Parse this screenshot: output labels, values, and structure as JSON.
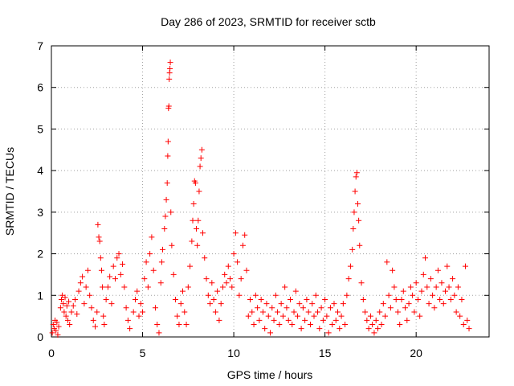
{
  "chart_data": {
    "type": "scatter",
    "title": "Day 286 of 2023, SRMTID for receiver sctb",
    "xlabel": "GPS time / hours",
    "ylabel": "SRMTID / TECUs",
    "xlim": [
      0,
      24
    ],
    "ylim": [
      0,
      7
    ],
    "x_ticks": [
      0,
      5,
      10,
      15,
      20
    ],
    "y_ticks": [
      0,
      1,
      2,
      3,
      4,
      5,
      6,
      7
    ],
    "x_tick_labels": [
      "0",
      "5",
      "10",
      "15",
      "20"
    ],
    "y_tick_labels": [
      "0",
      "1",
      "2",
      "3",
      "4",
      "5",
      "6",
      "7"
    ],
    "grid": true,
    "marker": "+",
    "marker_color": "#ff0000",
    "series": [
      {
        "name": "SRMTID",
        "points": [
          [
            0.05,
            0.1
          ],
          [
            0.1,
            0.3
          ],
          [
            0.15,
            0.2
          ],
          [
            0.2,
            0.4
          ],
          [
            0.25,
            0.15
          ],
          [
            0.3,
            0.35
          ],
          [
            0.35,
            0.05
          ],
          [
            0.4,
            0.25
          ],
          [
            0.5,
            0.7
          ],
          [
            0.55,
            0.9
          ],
          [
            0.6,
            1.0
          ],
          [
            0.65,
            0.8
          ],
          [
            0.7,
            0.6
          ],
          [
            0.75,
            0.95
          ],
          [
            0.8,
            0.5
          ],
          [
            0.85,
            0.75
          ],
          [
            0.9,
            0.4
          ],
          [
            0.95,
            0.85
          ],
          [
            1.0,
            0.3
          ],
          [
            1.1,
            0.6
          ],
          [
            1.2,
            0.75
          ],
          [
            1.3,
            0.9
          ],
          [
            1.4,
            0.55
          ],
          [
            1.5,
            1.1
          ],
          [
            1.6,
            1.3
          ],
          [
            1.7,
            1.45
          ],
          [
            1.8,
            0.8
          ],
          [
            1.9,
            1.2
          ],
          [
            2.0,
            1.6
          ],
          [
            2.1,
            1.0
          ],
          [
            2.2,
            0.7
          ],
          [
            2.3,
            0.4
          ],
          [
            2.4,
            0.25
          ],
          [
            2.5,
            0.6
          ],
          [
            2.55,
            2.7
          ],
          [
            2.6,
            2.4
          ],
          [
            2.65,
            2.3
          ],
          [
            2.7,
            1.9
          ],
          [
            2.75,
            1.6
          ],
          [
            2.8,
            1.2
          ],
          [
            2.85,
            0.5
          ],
          [
            2.9,
            0.3
          ],
          [
            3.0,
            0.9
          ],
          [
            3.1,
            1.2
          ],
          [
            3.2,
            1.45
          ],
          [
            3.3,
            0.8
          ],
          [
            3.4,
            1.7
          ],
          [
            3.5,
            1.4
          ],
          [
            3.6,
            1.9
          ],
          [
            3.7,
            2.0
          ],
          [
            3.8,
            1.5
          ],
          [
            3.9,
            1.75
          ],
          [
            4.0,
            1.2
          ],
          [
            4.1,
            0.7
          ],
          [
            4.2,
            0.4
          ],
          [
            4.3,
            0.2
          ],
          [
            4.5,
            0.6
          ],
          [
            4.6,
            0.9
          ],
          [
            4.7,
            1.1
          ],
          [
            4.8,
            0.5
          ],
          [
            4.9,
            0.8
          ],
          [
            5.0,
            0.6
          ],
          [
            5.1,
            1.4
          ],
          [
            5.2,
            1.8
          ],
          [
            5.3,
            1.2
          ],
          [
            5.4,
            2.0
          ],
          [
            5.5,
            2.4
          ],
          [
            5.6,
            1.6
          ],
          [
            5.7,
            0.7
          ],
          [
            5.8,
            0.3
          ],
          [
            5.9,
            0.1
          ],
          [
            6.0,
            1.3
          ],
          [
            6.05,
            1.8
          ],
          [
            6.1,
            2.1
          ],
          [
            6.2,
            2.6
          ],
          [
            6.25,
            2.9
          ],
          [
            6.3,
            3.3
          ],
          [
            6.35,
            3.7
          ],
          [
            6.38,
            4.35
          ],
          [
            6.4,
            4.7
          ],
          [
            6.42,
            5.5
          ],
          [
            6.44,
            5.55
          ],
          [
            6.46,
            6.2
          ],
          [
            6.48,
            6.35
          ],
          [
            6.5,
            6.45
          ],
          [
            6.52,
            6.6
          ],
          [
            6.55,
            3.0
          ],
          [
            6.6,
            2.2
          ],
          [
            6.7,
            1.5
          ],
          [
            6.8,
            0.9
          ],
          [
            6.9,
            0.5
          ],
          [
            7.0,
            0.3
          ],
          [
            7.1,
            0.8
          ],
          [
            7.2,
            1.1
          ],
          [
            7.3,
            0.6
          ],
          [
            7.4,
            0.3
          ],
          [
            7.5,
            1.2
          ],
          [
            7.6,
            1.7
          ],
          [
            7.7,
            2.3
          ],
          [
            7.75,
            2.8
          ],
          [
            7.8,
            3.2
          ],
          [
            7.85,
            3.75
          ],
          [
            7.9,
            3.7
          ],
          [
            7.95,
            2.6
          ],
          [
            8.0,
            2.2
          ],
          [
            8.05,
            2.8
          ],
          [
            8.1,
            3.5
          ],
          [
            8.15,
            4.1
          ],
          [
            8.2,
            4.3
          ],
          [
            8.25,
            4.5
          ],
          [
            8.3,
            2.5
          ],
          [
            8.4,
            1.9
          ],
          [
            8.5,
            1.4
          ],
          [
            8.6,
            1.0
          ],
          [
            8.7,
            0.8
          ],
          [
            8.8,
            1.3
          ],
          [
            8.9,
            0.9
          ],
          [
            9.0,
            0.6
          ],
          [
            9.1,
            1.1
          ],
          [
            9.2,
            0.4
          ],
          [
            9.3,
            0.8
          ],
          [
            9.4,
            1.2
          ],
          [
            9.5,
            1.5
          ],
          [
            9.6,
            1.3
          ],
          [
            9.7,
            1.7
          ],
          [
            9.8,
            1.4
          ],
          [
            9.9,
            1.2
          ],
          [
            10.0,
            2.0
          ],
          [
            10.1,
            2.5
          ],
          [
            10.2,
            1.8
          ],
          [
            10.3,
            1.0
          ],
          [
            10.4,
            1.4
          ],
          [
            10.5,
            2.2
          ],
          [
            10.6,
            2.45
          ],
          [
            10.7,
            1.6
          ],
          [
            10.8,
            0.5
          ],
          [
            10.9,
            0.9
          ],
          [
            11.0,
            0.6
          ],
          [
            11.1,
            0.3
          ],
          [
            11.2,
            1.0
          ],
          [
            11.3,
            0.7
          ],
          [
            11.4,
            0.4
          ],
          [
            11.5,
            0.9
          ],
          [
            11.6,
            0.6
          ],
          [
            11.7,
            0.2
          ],
          [
            11.8,
            0.8
          ],
          [
            11.9,
            0.5
          ],
          [
            12.0,
            0.1
          ],
          [
            12.1,
            0.7
          ],
          [
            12.2,
            0.4
          ],
          [
            12.3,
            1.0
          ],
          [
            12.4,
            0.6
          ],
          [
            12.5,
            0.3
          ],
          [
            12.6,
            0.8
          ],
          [
            12.7,
            0.5
          ],
          [
            12.8,
            1.2
          ],
          [
            12.9,
            0.7
          ],
          [
            13.0,
            0.4
          ],
          [
            13.1,
            0.9
          ],
          [
            13.2,
            0.3
          ],
          [
            13.3,
            0.6
          ],
          [
            13.4,
            1.1
          ],
          [
            13.5,
            0.5
          ],
          [
            13.6,
            0.8
          ],
          [
            13.7,
            0.2
          ],
          [
            13.8,
            0.7
          ],
          [
            13.9,
            0.4
          ],
          [
            14.0,
            0.9
          ],
          [
            14.1,
            0.6
          ],
          [
            14.2,
            0.3
          ],
          [
            14.3,
            0.8
          ],
          [
            14.4,
            0.5
          ],
          [
            14.5,
            1.0
          ],
          [
            14.6,
            0.6
          ],
          [
            14.7,
            0.2
          ],
          [
            14.8,
            0.7
          ],
          [
            14.9,
            0.4
          ],
          [
            15.0,
            0.9
          ],
          [
            15.1,
            0.5
          ],
          [
            15.2,
            0.1
          ],
          [
            15.3,
            0.7
          ],
          [
            15.4,
            0.3
          ],
          [
            15.5,
            0.8
          ],
          [
            15.6,
            0.4
          ],
          [
            15.7,
            0.6
          ],
          [
            15.8,
            0.2
          ],
          [
            15.9,
            0.5
          ],
          [
            16.0,
            0.8
          ],
          [
            16.1,
            0.3
          ],
          [
            16.2,
            1.0
          ],
          [
            16.3,
            1.4
          ],
          [
            16.4,
            1.7
          ],
          [
            16.5,
            2.1
          ],
          [
            16.55,
            2.6
          ],
          [
            16.6,
            3.0
          ],
          [
            16.65,
            3.5
          ],
          [
            16.7,
            3.85
          ],
          [
            16.75,
            3.95
          ],
          [
            16.8,
            3.2
          ],
          [
            16.85,
            2.8
          ],
          [
            16.9,
            2.2
          ],
          [
            17.0,
            1.3
          ],
          [
            17.1,
            0.9
          ],
          [
            17.2,
            0.6
          ],
          [
            17.3,
            0.4
          ],
          [
            17.4,
            0.2
          ],
          [
            17.5,
            0.5
          ],
          [
            17.6,
            0.3
          ],
          [
            17.7,
            0.1
          ],
          [
            17.8,
            0.4
          ],
          [
            17.9,
            0.2
          ],
          [
            18.0,
            0.6
          ],
          [
            18.1,
            0.3
          ],
          [
            18.2,
            0.8
          ],
          [
            18.3,
            0.5
          ],
          [
            18.4,
            1.8
          ],
          [
            18.5,
            1.0
          ],
          [
            18.6,
            0.7
          ],
          [
            18.7,
            1.6
          ],
          [
            18.8,
            1.2
          ],
          [
            18.9,
            0.9
          ],
          [
            19.0,
            0.6
          ],
          [
            19.1,
            0.3
          ],
          [
            19.2,
            0.9
          ],
          [
            19.3,
            1.1
          ],
          [
            19.4,
            0.7
          ],
          [
            19.5,
            0.4
          ],
          [
            19.6,
            0.8
          ],
          [
            19.7,
            1.2
          ],
          [
            19.8,
            1.0
          ],
          [
            19.9,
            0.6
          ],
          [
            20.0,
            1.3
          ],
          [
            20.1,
            0.9
          ],
          [
            20.2,
            0.5
          ],
          [
            20.3,
            1.1
          ],
          [
            20.4,
            1.5
          ],
          [
            20.5,
            1.9
          ],
          [
            20.6,
            1.2
          ],
          [
            20.7,
            0.8
          ],
          [
            20.8,
            1.4
          ],
          [
            20.9,
            1.0
          ],
          [
            21.0,
            0.7
          ],
          [
            21.1,
            1.2
          ],
          [
            21.2,
            1.6
          ],
          [
            21.3,
            0.9
          ],
          [
            21.4,
            1.3
          ],
          [
            21.5,
            0.8
          ],
          [
            21.6,
            1.1
          ],
          [
            21.7,
            1.7
          ],
          [
            21.8,
            1.2
          ],
          [
            21.9,
            0.9
          ],
          [
            22.0,
            1.4
          ],
          [
            22.1,
            1.0
          ],
          [
            22.2,
            0.6
          ],
          [
            22.3,
            1.2
          ],
          [
            22.4,
            0.5
          ],
          [
            22.5,
            0.9
          ],
          [
            22.6,
            0.3
          ],
          [
            22.7,
            1.7
          ],
          [
            22.8,
            0.4
          ],
          [
            22.9,
            0.2
          ]
        ]
      }
    ]
  }
}
